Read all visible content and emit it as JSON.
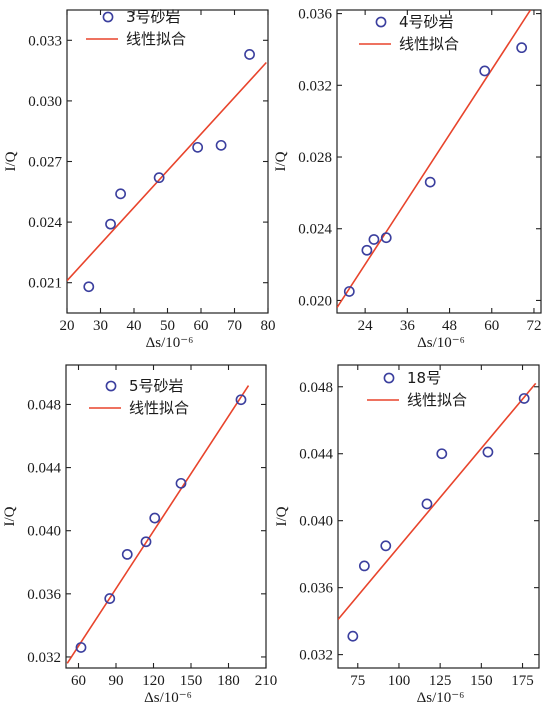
{
  "chart_data": [
    {
      "type": "scatter",
      "xlabel": "Δs/10⁻⁶",
      "ylabel": "I/Q",
      "xlim": [
        20,
        80
      ],
      "ylim": [
        0.0195,
        0.0345
      ],
      "xticks": [
        20,
        30,
        40,
        50,
        60,
        70,
        80
      ],
      "yticks": [
        0.021,
        0.024,
        0.027,
        0.03,
        0.033
      ],
      "x_tick_labels": [
        "20",
        "30",
        "40",
        "50",
        "60",
        "70",
        "80"
      ],
      "y_tick_labels": [
        "0.021",
        "0.024",
        "0.027",
        "0.030",
        "0.033"
      ],
      "legend": [
        "3号砂岩",
        "线性拟合"
      ],
      "points": [
        [
          26.5,
          0.0208
        ],
        [
          33,
          0.0239
        ],
        [
          36,
          0.0254
        ],
        [
          47.5,
          0.0262
        ],
        [
          59,
          0.0277
        ],
        [
          66,
          0.0278
        ],
        [
          74.5,
          0.0323
        ]
      ],
      "fit_line": [
        [
          20,
          0.0211
        ],
        [
          79.5,
          0.0319
        ]
      ]
    },
    {
      "type": "scatter",
      "xlabel": "Δs/10⁻⁶",
      "ylabel": "I/Q",
      "xlim": [
        16,
        74
      ],
      "ylim": [
        0.0193,
        0.0362
      ],
      "xticks": [
        24,
        36,
        48,
        60,
        72
      ],
      "yticks": [
        0.02,
        0.024,
        0.028,
        0.032,
        0.036
      ],
      "x_tick_labels": [
        "24",
        "36",
        "48",
        "60",
        "72"
      ],
      "y_tick_labels": [
        "0.020",
        "0.024",
        "0.028",
        "0.032",
        "0.036"
      ],
      "legend": [
        "4号砂岩",
        "线性拟合"
      ],
      "points": [
        [
          19.5,
          0.0205
        ],
        [
          24.5,
          0.0228
        ],
        [
          26.5,
          0.0234
        ],
        [
          30,
          0.0235
        ],
        [
          42.5,
          0.0266
        ],
        [
          58,
          0.0328
        ],
        [
          68.5,
          0.0341
        ]
      ],
      "fit_line": [
        [
          16,
          0.0196
        ],
        [
          71,
          0.0362
        ]
      ]
    },
    {
      "type": "scatter",
      "xlabel": "Δs/10⁻⁶",
      "ylabel": "I/Q",
      "xlim": [
        50,
        210
      ],
      "ylim": [
        0.0313,
        0.0505
      ],
      "xticks": [
        60,
        90,
        120,
        150,
        180,
        210
      ],
      "yticks": [
        0.032,
        0.036,
        0.04,
        0.044,
        0.048
      ],
      "x_tick_labels": [
        "60",
        "90",
        "120",
        "150",
        "180",
        "210"
      ],
      "y_tick_labels": [
        "0.032",
        "0.036",
        "0.040",
        "0.044",
        "0.048"
      ],
      "legend": [
        "5号砂岩",
        "线性拟合"
      ],
      "points": [
        [
          62,
          0.0326
        ],
        [
          85,
          0.0357
        ],
        [
          99,
          0.0385
        ],
        [
          114,
          0.0393
        ],
        [
          121,
          0.0408
        ],
        [
          142,
          0.043
        ],
        [
          190,
          0.0483
        ]
      ],
      "fit_line": [
        [
          51,
          0.0316
        ],
        [
          196,
          0.0492
        ]
      ]
    },
    {
      "type": "scatter",
      "xlabel": "Δs/10⁻⁶",
      "ylabel": "I/Q",
      "xlim": [
        63,
        185
      ],
      "ylim": [
        0.0312,
        0.0493
      ],
      "xticks": [
        75,
        100,
        125,
        150,
        175
      ],
      "yticks": [
        0.032,
        0.036,
        0.04,
        0.044,
        0.048
      ],
      "x_tick_labels": [
        "75",
        "100",
        "125",
        "150",
        "175"
      ],
      "y_tick_labels": [
        "0.032",
        "0.036",
        "0.040",
        "0.044",
        "0.048"
      ],
      "legend": [
        "18号",
        "线性拟合"
      ],
      "points": [
        [
          72,
          0.0331
        ],
        [
          79,
          0.0373
        ],
        [
          92,
          0.0385
        ],
        [
          117,
          0.041
        ],
        [
          126,
          0.044
        ],
        [
          154,
          0.0441
        ],
        [
          176,
          0.0473
        ]
      ],
      "fit_line": [
        [
          63,
          0.0341
        ],
        [
          183,
          0.0482
        ]
      ]
    }
  ],
  "colors": {
    "marker": "#3b3f9e",
    "fit_line": "#e8442c",
    "axis": "#222222"
  }
}
